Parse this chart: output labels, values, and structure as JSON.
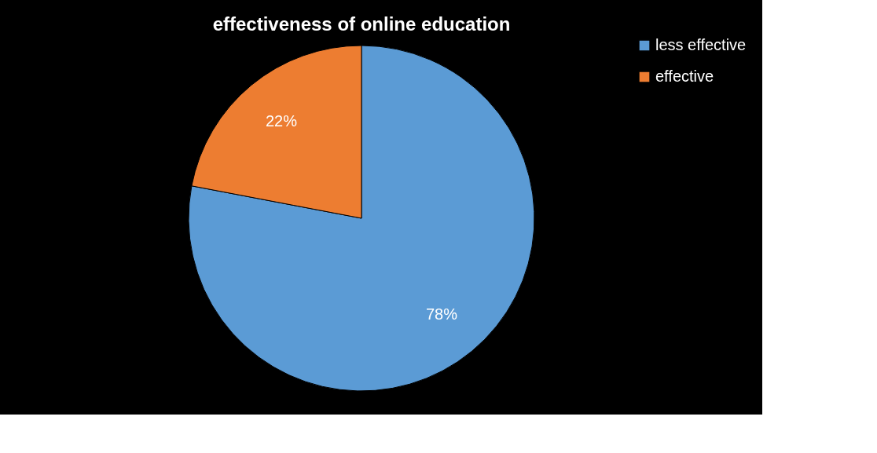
{
  "chart_data": {
    "type": "pie",
    "title": "effectiveness of online education",
    "categories": [
      "less effective",
      "effective"
    ],
    "values": [
      78,
      22
    ],
    "colors": [
      "#5b9bd5",
      "#ed7d31"
    ],
    "value_labels": [
      "78%",
      "22%"
    ],
    "legend": "right"
  }
}
